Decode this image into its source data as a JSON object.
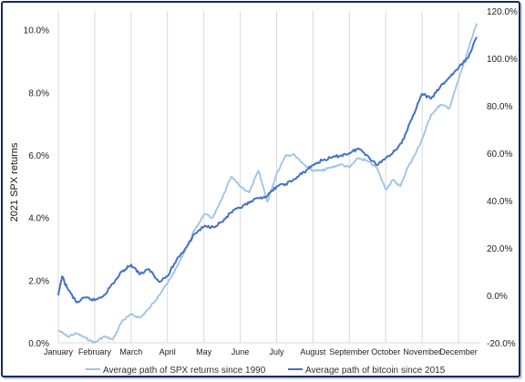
{
  "chart_data": {
    "type": "line",
    "ylabel": "2021 SPX returns",
    "y_left": {
      "ticks": [
        "0.0%",
        "2.0%",
        "4.0%",
        "6.0%",
        "8.0%",
        "10.0%"
      ],
      "values": [
        0,
        2,
        4,
        6,
        8,
        10
      ],
      "range": [
        0,
        10.6
      ]
    },
    "y_right": {
      "ticks": [
        "-20.0%",
        "0.0%",
        "20.0%",
        "40.0%",
        "60.0%",
        "80.0%",
        "100.0%",
        "120.0%"
      ],
      "values": [
        -20,
        0,
        20,
        40,
        60,
        80,
        100,
        120
      ],
      "range": [
        -20,
        120
      ]
    },
    "categories": [
      "January",
      "February",
      "March",
      "April",
      "May",
      "June",
      "July",
      "August",
      "September",
      "October",
      "November",
      "December"
    ],
    "grid": "vertical",
    "legend": "bottom",
    "series": [
      {
        "name": "Average path of SPX returns since 1990",
        "color": "#9dc3e6",
        "axis": "left",
        "x": [
          0.0,
          0.25,
          0.5,
          0.75,
          1.0,
          1.25,
          1.5,
          1.75,
          2.0,
          2.25,
          2.5,
          2.75,
          3.0,
          3.25,
          3.5,
          3.75,
          4.0,
          4.25,
          4.5,
          4.75,
          5.0,
          5.25,
          5.5,
          5.75,
          6.0,
          6.25,
          6.5,
          6.75,
          7.0,
          7.25,
          7.5,
          7.75,
          8.0,
          8.25,
          8.5,
          8.75,
          9.0,
          9.2,
          9.4,
          9.6,
          9.8,
          10.0,
          10.25,
          10.5,
          10.75,
          11.0,
          11.25,
          11.5
        ],
        "values": [
          0.4,
          0.2,
          0.3,
          0.15,
          0.0,
          0.2,
          0.1,
          0.7,
          0.9,
          0.8,
          1.1,
          1.5,
          1.9,
          2.4,
          3.0,
          3.6,
          4.1,
          4.0,
          4.6,
          5.3,
          5.0,
          4.8,
          5.5,
          4.5,
          5.4,
          6.0,
          6.0,
          5.7,
          5.5,
          5.5,
          5.6,
          5.7,
          5.6,
          5.9,
          5.8,
          5.6,
          4.9,
          5.2,
          5.0,
          5.6,
          6.0,
          6.5,
          7.3,
          7.6,
          7.5,
          8.4,
          9.3,
          10.2
        ]
      },
      {
        "name": "Average path of bitcoin since 2015",
        "color": "#4472c4",
        "axis": "right",
        "x": [
          0.0,
          0.1,
          0.25,
          0.5,
          0.75,
          1.0,
          1.25,
          1.5,
          1.75,
          2.0,
          2.25,
          2.5,
          2.75,
          3.0,
          3.25,
          3.5,
          3.75,
          4.0,
          4.25,
          4.5,
          4.75,
          5.0,
          5.25,
          5.5,
          5.75,
          6.0,
          6.25,
          6.5,
          6.75,
          7.0,
          7.25,
          7.5,
          7.75,
          8.0,
          8.25,
          8.5,
          8.75,
          9.0,
          9.25,
          9.5,
          9.75,
          10.0,
          10.25,
          10.5,
          10.75,
          11.0,
          11.25,
          11.5
        ],
        "values": [
          0.0,
          8.0,
          3.0,
          -3.0,
          -1.0,
          -2.0,
          0.0,
          5.0,
          10.0,
          13.0,
          9.0,
          11.0,
          6.0,
          8.0,
          15.0,
          20.0,
          26.0,
          29.0,
          29.0,
          31.0,
          35.0,
          37.0,
          39.0,
          41.0,
          42.0,
          46.0,
          47.0,
          49.0,
          52.0,
          55.0,
          57.0,
          58.0,
          59.0,
          60.0,
          62.0,
          59.0,
          55.0,
          58.0,
          61.0,
          66.0,
          76.0,
          85.0,
          83.0,
          88.0,
          92.0,
          96.0,
          100.0,
          109.0
        ]
      }
    ]
  }
}
